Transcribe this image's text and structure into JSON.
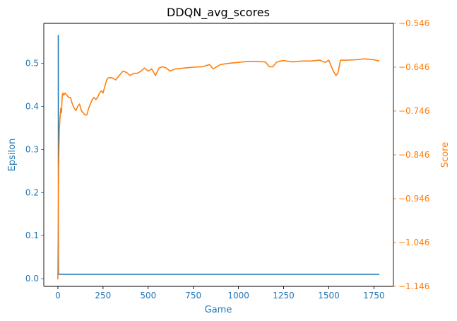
{
  "chart_data": {
    "type": "line",
    "title": "DDQN_avg_scores",
    "xlabel": "Game",
    "ylabel_left": "Epsilon",
    "ylabel_right": "Score",
    "xlim": [
      -78,
      1858
    ],
    "ylim_left": [
      -0.018,
      0.593
    ],
    "ylim_right": [
      -1.146,
      -0.546
    ],
    "x_ticks": [
      0,
      250,
      500,
      750,
      1000,
      1250,
      1500,
      1750
    ],
    "x_tick_labels": [
      "0",
      "250",
      "500",
      "750",
      "1000",
      "1250",
      "1500",
      "1750"
    ],
    "y_left_ticks": [
      0.0,
      0.1,
      0.2,
      0.3,
      0.4,
      0.5
    ],
    "y_left_tick_labels": [
      "0.0",
      "0.1",
      "0.2",
      "0.3",
      "0.4",
      "0.5"
    ],
    "y_right_ticks": [
      -0.546,
      -0.646,
      -0.746,
      -0.846,
      -0.946,
      -1.046,
      -1.146
    ],
    "y_right_tick_labels": [
      "−0.546",
      "−0.646",
      "−0.746",
      "−0.846",
      "−0.946",
      "−1.046",
      "−1.146"
    ],
    "grid": false,
    "colors": {
      "left_axis": "#1f77b4",
      "right_axis": "#ff7f0e",
      "axes": "#000000"
    },
    "series": [
      {
        "axis": "left",
        "x": [
          0,
          2,
          3,
          1780
        ],
        "values": [
          0.565,
          0.565,
          0.01,
          0.01
        ]
      },
      {
        "axis": "right",
        "x": [
          0,
          2,
          4,
          8,
          12,
          16,
          20,
          24,
          28,
          32,
          40,
          50,
          60,
          70,
          80,
          90,
          100,
          110,
          120,
          130,
          140,
          150,
          160,
          170,
          180,
          190,
          200,
          210,
          220,
          230,
          240,
          250,
          260,
          270,
          280,
          300,
          320,
          340,
          360,
          380,
          400,
          420,
          440,
          460,
          480,
          500,
          520,
          540,
          560,
          580,
          600,
          620,
          650,
          700,
          750,
          800,
          840,
          860,
          880,
          900,
          950,
          1000,
          1050,
          1100,
          1150,
          1170,
          1190,
          1210,
          1230,
          1250,
          1300,
          1350,
          1400,
          1450,
          1480,
          1500,
          1510,
          1525,
          1540,
          1550,
          1565,
          1580,
          1600,
          1650,
          1700,
          1750,
          1780
        ],
        "values": [
          -1.13,
          -1.0,
          -0.87,
          -0.79,
          -0.76,
          -0.74,
          -0.75,
          -0.71,
          -0.705,
          -0.71,
          -0.705,
          -0.71,
          -0.715,
          -0.715,
          -0.73,
          -0.74,
          -0.745,
          -0.735,
          -0.73,
          -0.745,
          -0.75,
          -0.755,
          -0.755,
          -0.74,
          -0.73,
          -0.72,
          -0.715,
          -0.72,
          -0.715,
          -0.705,
          -0.7,
          -0.705,
          -0.69,
          -0.675,
          -0.67,
          -0.67,
          -0.675,
          -0.665,
          -0.655,
          -0.658,
          -0.665,
          -0.66,
          -0.66,
          -0.655,
          -0.648,
          -0.655,
          -0.65,
          -0.665,
          -0.648,
          -0.645,
          -0.648,
          -0.655,
          -0.65,
          -0.648,
          -0.646,
          -0.645,
          -0.64,
          -0.65,
          -0.645,
          -0.64,
          -0.637,
          -0.635,
          -0.633,
          -0.633,
          -0.634,
          -0.645,
          -0.645,
          -0.635,
          -0.632,
          -0.631,
          -0.634,
          -0.632,
          -0.632,
          -0.63,
          -0.635,
          -0.63,
          -0.64,
          -0.655,
          -0.665,
          -0.66,
          -0.63,
          -0.63,
          -0.63,
          -0.629,
          -0.627,
          -0.629,
          -0.632
        ]
      }
    ]
  }
}
